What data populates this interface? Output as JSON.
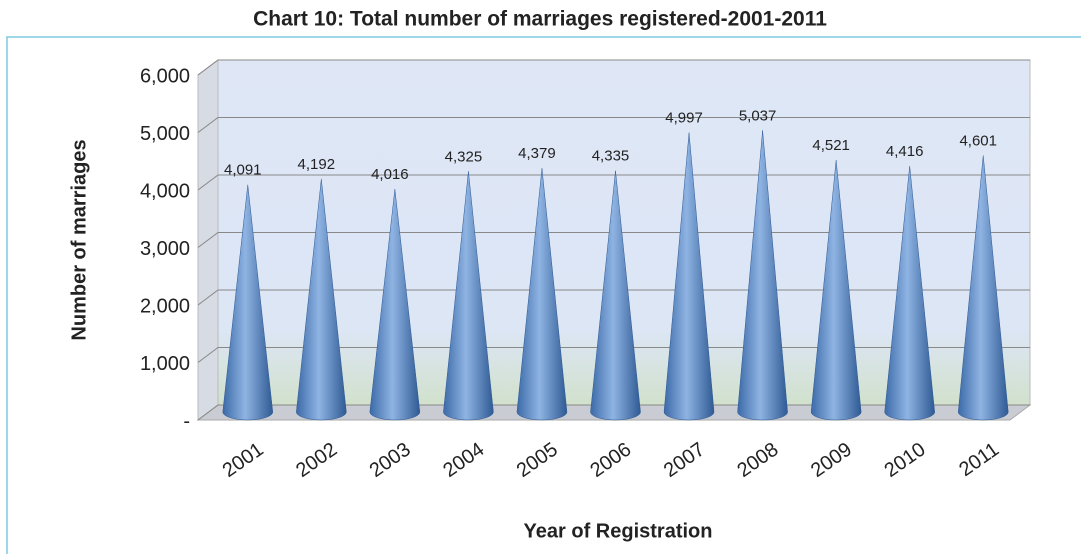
{
  "chart_data": {
    "type": "bar",
    "title": "Chart 10: Total number of marriages registered-2001-2011",
    "x_label": "Year of Registration",
    "y_label": "Number of marriages",
    "categories": [
      "2001",
      "2002",
      "2003",
      "2004",
      "2005",
      "2006",
      "2007",
      "2008",
      "2009",
      "2010",
      "2011"
    ],
    "values": [
      4091,
      4192,
      4016,
      4325,
      4379,
      4335,
      4997,
      5037,
      4521,
      4416,
      4601
    ],
    "value_labels": [
      "4,091",
      "4,192",
      "4,016",
      "4,325",
      "4,379",
      "4,335",
      "4,997",
      "5,037",
      "4,521",
      "4,416",
      "4,601"
    ],
    "color": "#4f81bd",
    "ylim": [
      0,
      6000
    ],
    "yticks": [
      {
        "value": 0,
        "label": "-"
      },
      {
        "value": 1000,
        "label": "1,000"
      },
      {
        "value": 2000,
        "label": "2,000"
      },
      {
        "value": 3000,
        "label": "3,000"
      },
      {
        "value": 4000,
        "label": "4,000"
      },
      {
        "value": 5000,
        "label": "5,000"
      },
      {
        "value": 6000,
        "label": "6,000"
      }
    ],
    "grid": true
  }
}
